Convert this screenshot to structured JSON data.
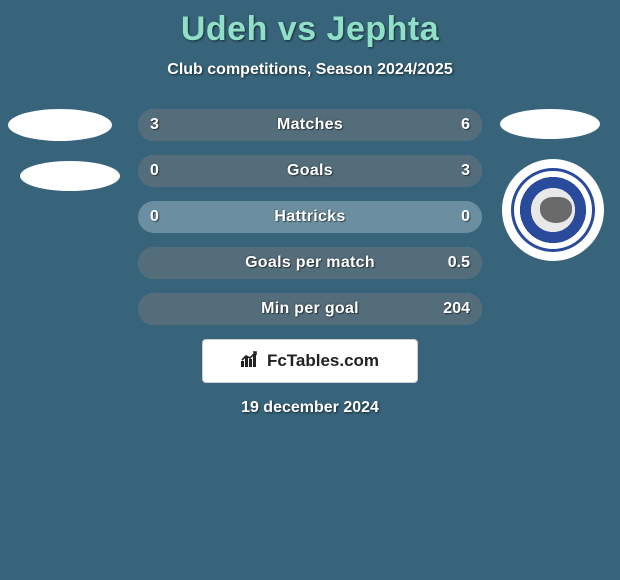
{
  "background_color": "#37647b",
  "title": {
    "text": "Udeh vs Jephta",
    "color": "#8fe0c6",
    "fontsize": 34,
    "weight": 900
  },
  "subtitle": {
    "text": "Club competitions, Season 2024/2025",
    "color": "#ffffff",
    "fontsize": 16
  },
  "bars": {
    "track_color": "#6b8fa0",
    "fill_left_color": "#546d7a",
    "fill_right_color": "#546d7a",
    "text_color": "#ffffff",
    "height": 32,
    "radius": 16,
    "fontsize": 16,
    "rows": [
      {
        "label": "Matches",
        "left": "3",
        "right": "6",
        "left_pct": 33,
        "right_pct": 67
      },
      {
        "label": "Goals",
        "left": "0",
        "right": "3",
        "left_pct": 0,
        "right_pct": 100
      },
      {
        "label": "Hattricks",
        "left": "0",
        "right": "0",
        "left_pct": 0,
        "right_pct": 0
      },
      {
        "label": "Goals per match",
        "left": "",
        "right": "0.5",
        "left_pct": 0,
        "right_pct": 100
      },
      {
        "label": "Min per goal",
        "left": "",
        "right": "204",
        "left_pct": 0,
        "right_pct": 100
      }
    ]
  },
  "logo": {
    "brand": "FcTables.com",
    "icon_glyph": "⇱",
    "bg": "#ffffff",
    "border": "#cccccc",
    "text_color": "#222222"
  },
  "date": {
    "text": "19 december 2024",
    "color": "#ffffff",
    "fontsize": 16
  },
  "badges": {
    "left1_bg": "#ffffff",
    "left2_bg": "#ffffff",
    "right1_bg": "#ffffff",
    "crest_ring": "#2a4b9b",
    "crest_inner": "#e8e8e8"
  }
}
